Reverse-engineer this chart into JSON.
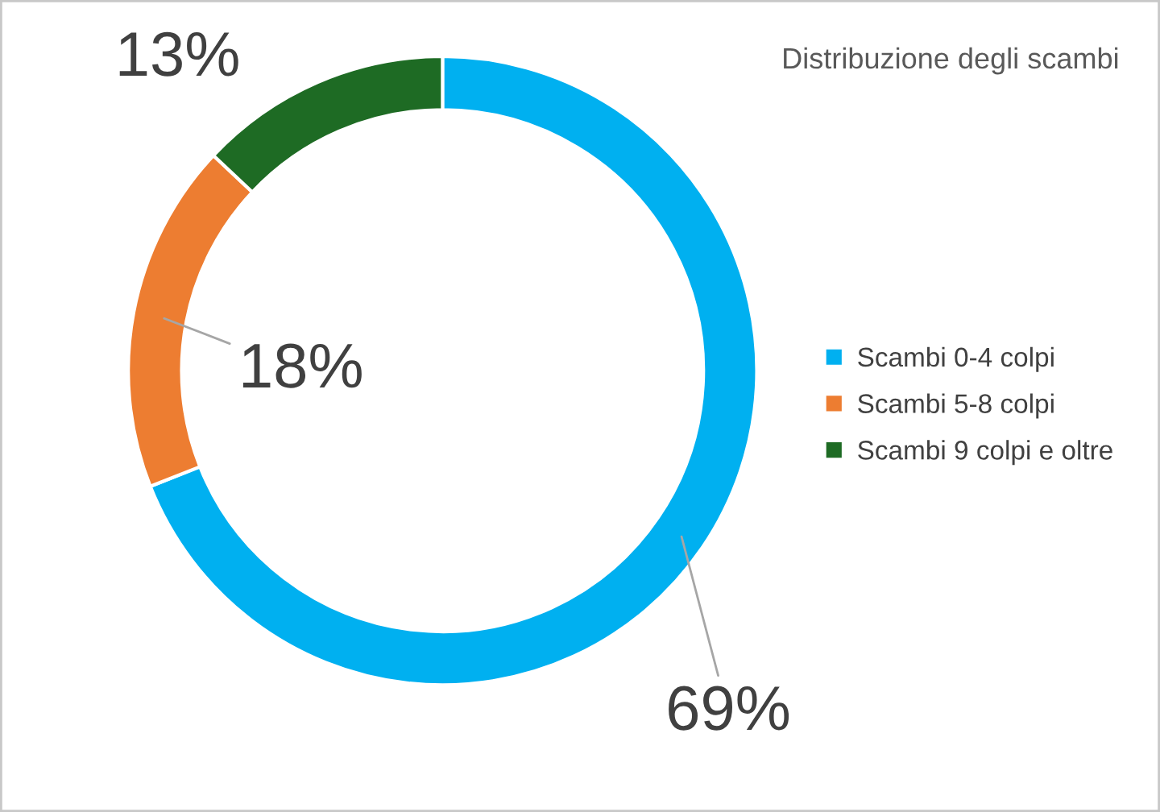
{
  "chart_data": {
    "type": "donut",
    "title": "Distribuzione degli scambi",
    "categories": [
      "Scambi 0-4 colpi",
      "Scambi 5-8 colpi",
      "Scambi 9 colpi e oltre"
    ],
    "values": [
      69,
      18,
      13
    ],
    "colors": [
      "#00b0f0",
      "#ed7d31",
      "#1e6b24"
    ],
    "value_labels": [
      "69%",
      "18%",
      "13%"
    ],
    "legend": "right"
  }
}
